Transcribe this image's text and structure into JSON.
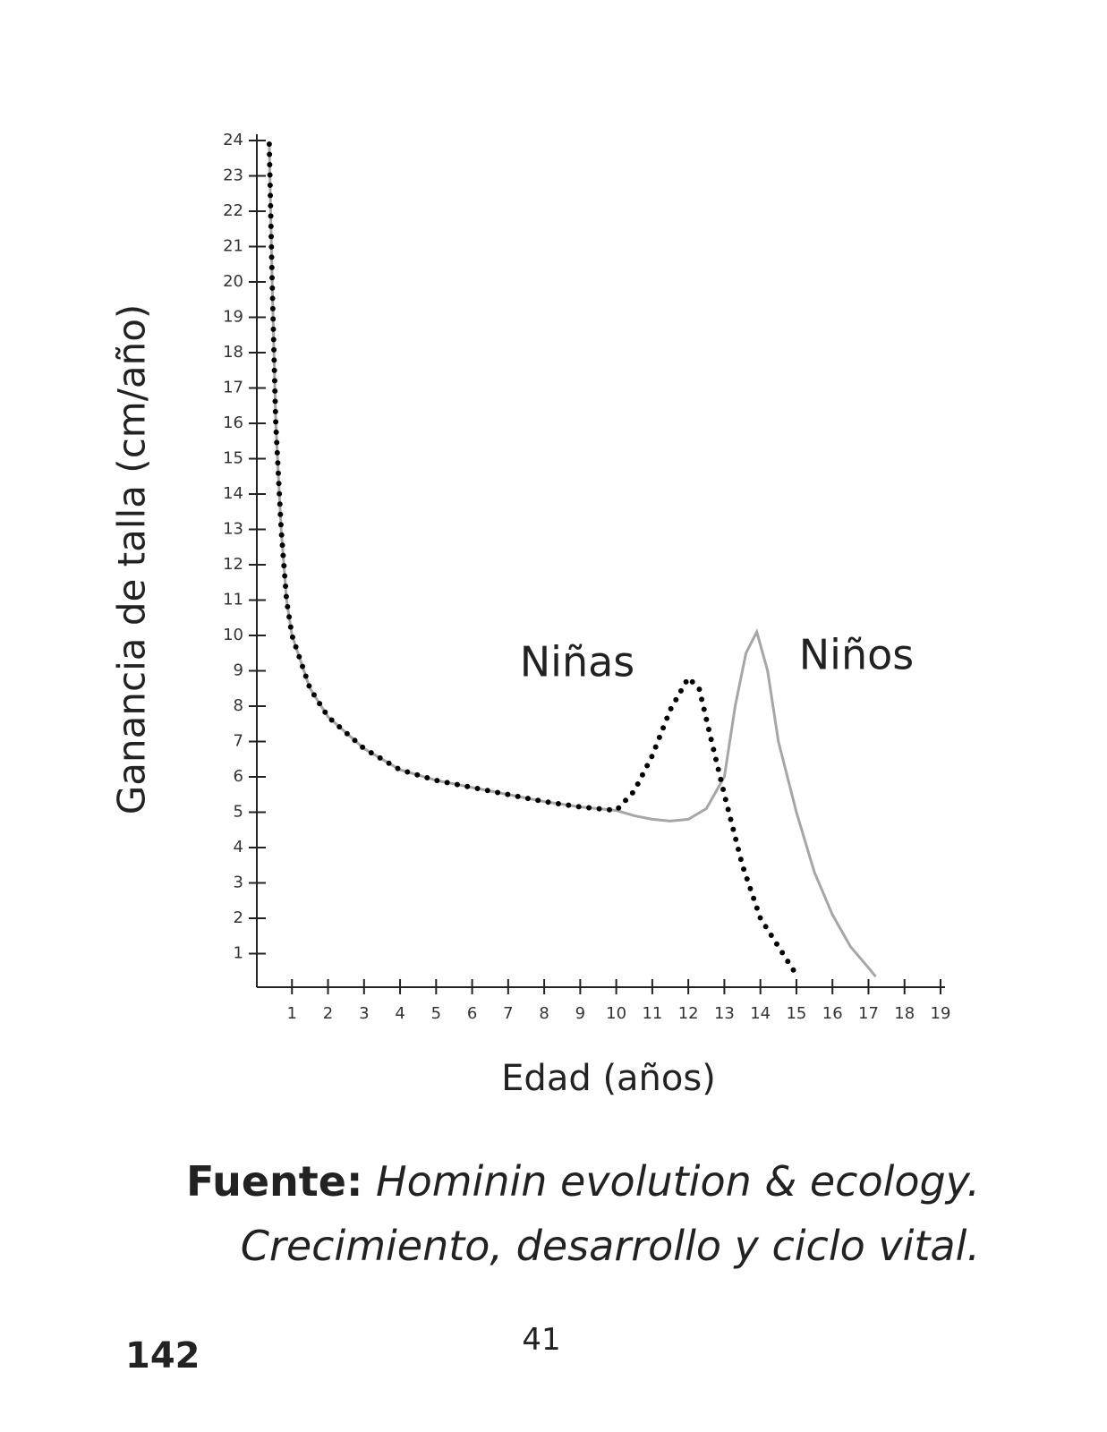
{
  "chart_data": {
    "type": "line",
    "ylabel": "Ganancia de talla (cm/año)",
    "xlabel": "Edad (años)",
    "xlim": [
      0,
      19
    ],
    "ylim": [
      0,
      24
    ],
    "xticks": [
      1,
      2,
      3,
      4,
      5,
      6,
      7,
      8,
      9,
      10,
      11,
      12,
      13,
      14,
      15,
      16,
      17,
      18,
      19
    ],
    "yticks": [
      1,
      2,
      3,
      4,
      5,
      6,
      7,
      8,
      9,
      10,
      11,
      12,
      13,
      14,
      15,
      16,
      17,
      18,
      19,
      20,
      21,
      22,
      23,
      24
    ],
    "series": [
      {
        "name": "Niños",
        "color": "#a6a6a6",
        "style": "solid",
        "x": [
          0.37,
          0.45,
          0.55,
          0.7,
          0.85,
          1,
          1.5,
          2,
          3,
          4,
          5,
          6,
          7,
          8,
          9,
          10,
          10.5,
          11,
          11.5,
          12,
          12.5,
          13,
          13.3,
          13.6,
          13.9,
          14.2,
          14.5,
          15,
          15.5,
          16,
          16.5,
          17,
          17.2
        ],
        "values": [
          23.9,
          20,
          16,
          13,
          11,
          10,
          8.5,
          7.7,
          6.8,
          6.2,
          5.9,
          5.7,
          5.5,
          5.3,
          5.15,
          5.05,
          4.9,
          4.8,
          4.75,
          4.8,
          5.1,
          6,
          8,
          9.5,
          10.1,
          9,
          7,
          5,
          3.3,
          2.1,
          1.2,
          0.6,
          0.35
        ]
      },
      {
        "name": "Niñas",
        "color": "#000000",
        "style": "dotted",
        "x": [
          0.37,
          0.45,
          0.55,
          0.7,
          0.85,
          1,
          1.5,
          2,
          3,
          4,
          5,
          6,
          7,
          8,
          9,
          10,
          10.5,
          11,
          11.5,
          12,
          12.3,
          12.6,
          13,
          13.5,
          14,
          14.5,
          15
        ],
        "values": [
          23.9,
          20,
          16,
          13,
          11,
          10,
          8.5,
          7.7,
          6.8,
          6.2,
          5.9,
          5.7,
          5.5,
          5.3,
          5.15,
          5.05,
          5.6,
          6.6,
          7.9,
          8.8,
          8.5,
          7.2,
          5.5,
          3.5,
          2,
          1.2,
          0.4
        ]
      }
    ]
  },
  "caption": {
    "label": "Fuente:",
    "line1": "Hominin evolution & ecology.",
    "line2": "Crecimiento, desarrollo y ciclo vital."
  },
  "page_number_left": "142",
  "page_number_center": "41"
}
